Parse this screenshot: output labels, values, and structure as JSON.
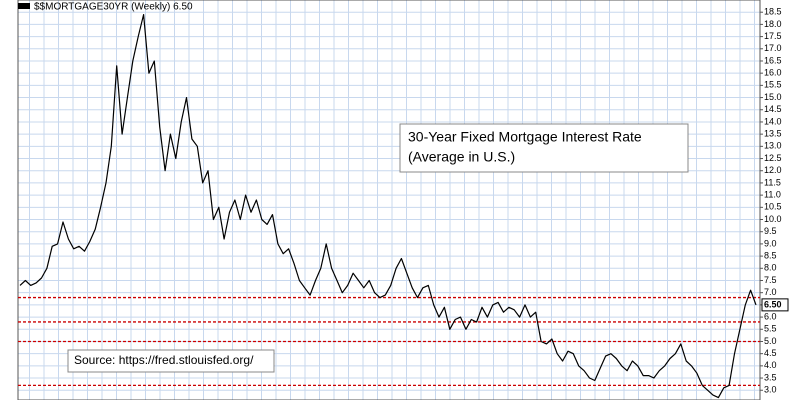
{
  "chart_data": {
    "type": "line",
    "title": "$$MORTGAGE30YR (Weekly) 6.50",
    "annotation": [
      "30-Year Fixed Mortgage Interest Rate",
      "(Average in U.S.)"
    ],
    "source": "Source: https://fred.stlouisfed.org/",
    "color": "#000000",
    "values": [
      7.3,
      7.5,
      7.3,
      7.4,
      7.6,
      8.0,
      8.9,
      9.0,
      9.9,
      9.2,
      8.8,
      8.9,
      8.7,
      9.1,
      9.6,
      10.5,
      11.5,
      13.0,
      16.3,
      13.5,
      15.0,
      16.5,
      17.5,
      18.4,
      16.0,
      16.5,
      13.8,
      12.0,
      13.5,
      12.5,
      14.0,
      15.0,
      13.3,
      13.0,
      11.5,
      12.0,
      10.0,
      10.5,
      9.2,
      10.3,
      10.8,
      10.0,
      11.0,
      10.3,
      10.8,
      10.0,
      9.8,
      10.2,
      9.0,
      8.6,
      8.8,
      8.2,
      7.5,
      7.2,
      6.9,
      7.5,
      8.0,
      9.0,
      8.0,
      7.5,
      7.0,
      7.3,
      7.8,
      7.5,
      7.2,
      7.5,
      7.0,
      6.8,
      6.9,
      7.3,
      8.0,
      8.4,
      7.8,
      7.2,
      6.8,
      7.2,
      7.3,
      6.5,
      6.0,
      6.4,
      5.5,
      5.9,
      6.0,
      5.5,
      5.9,
      5.8,
      6.4,
      6.0,
      6.5,
      6.6,
      6.2,
      6.4,
      6.3,
      6.0,
      6.5,
      6.0,
      6.2,
      5.0,
      4.9,
      5.1,
      4.5,
      4.2,
      4.6,
      4.5,
      4.0,
      3.8,
      3.5,
      3.4,
      3.9,
      4.4,
      4.5,
      4.3,
      4.0,
      3.8,
      4.2,
      4.0,
      3.6,
      3.6,
      3.5,
      3.8,
      4.0,
      4.3,
      4.5,
      4.9,
      4.2,
      4.0,
      3.7,
      3.2,
      3.0,
      2.8,
      2.7,
      3.1,
      3.2,
      4.5,
      5.5,
      6.5,
      7.1,
      6.5
    ],
    "last_value": {
      "value": 6.5,
      "label": "6.50"
    },
    "hlines": [
      6.8,
      5.8,
      5.0,
      3.2
    ],
    "hline_color": "#cc0000",
    "ylim": [
      2.6,
      19.0
    ],
    "yticks": [
      {
        "value": 3,
        "label": "3.0"
      },
      3.5,
      {
        "value": 4,
        "label": "4.0"
      },
      4.5,
      {
        "value": 5,
        "label": "5.0"
      },
      5.5,
      {
        "value": 6,
        "label": "6.0"
      },
      6.5,
      {
        "value": 7,
        "label": "7.0"
      },
      7.5,
      {
        "value": 8,
        "label": "8.0"
      },
      8.5,
      {
        "value": 9,
        "label": "9.0"
      },
      9.5,
      {
        "value": 10,
        "label": "10.0"
      },
      10.5,
      {
        "value": 11,
        "label": "11.0"
      },
      11.5,
      {
        "value": 12,
        "label": "12.0"
      },
      12.5,
      {
        "value": 13,
        "label": "13.0"
      },
      13.5,
      {
        "value": 14,
        "label": "14.0"
      },
      14.5,
      {
        "value": 15,
        "label": "15.0"
      },
      15.5,
      {
        "value": 16,
        "label": "16.0"
      },
      16.5,
      {
        "value": 17,
        "label": "17.0"
      },
      17.5,
      {
        "value": 18,
        "label": "18.0"
      },
      18.5
    ],
    "grid": true
  }
}
